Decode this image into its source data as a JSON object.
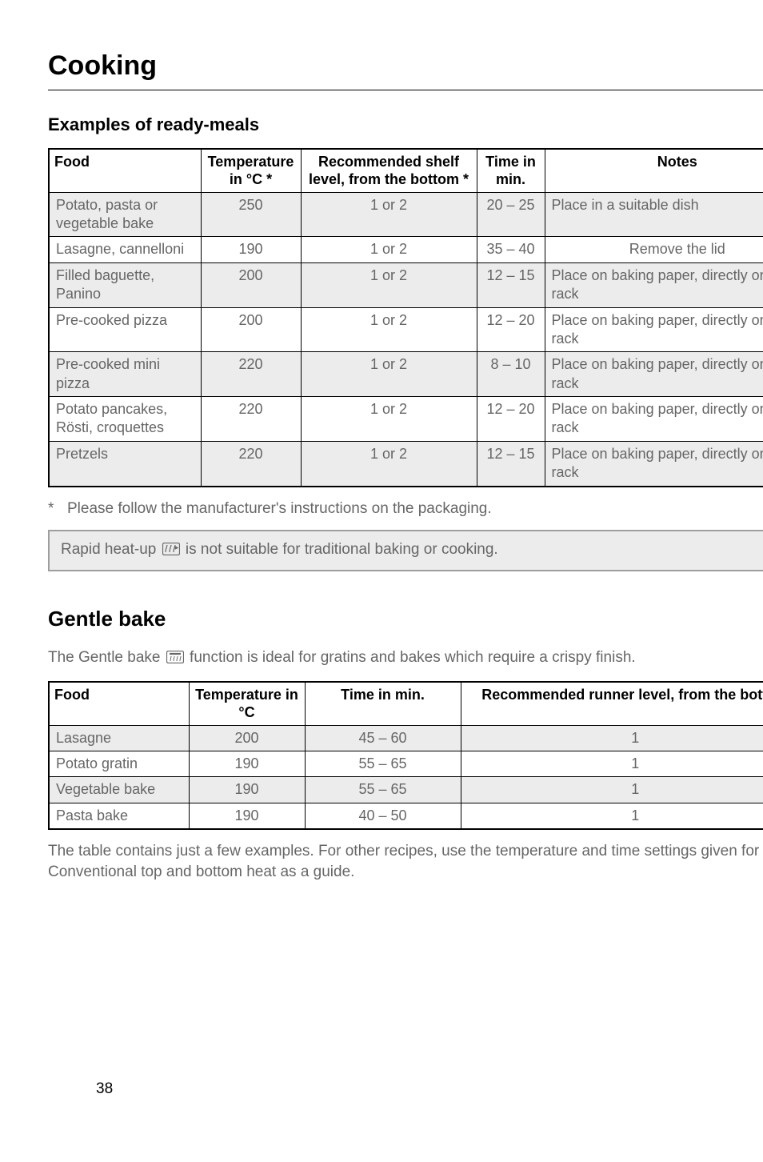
{
  "page_title": "Cooking",
  "page_number": "38",
  "section1": {
    "heading": "Examples of ready-meals",
    "columns": [
      "Food",
      "Temperature in °C *",
      "Recommended shelf level, from the bottom *",
      "Time in min.",
      "Notes"
    ],
    "rows": [
      {
        "food": "Potato, pasta or vegetable bake",
        "temp": "250",
        "shelf": "1 or 2",
        "time": "20 – 25",
        "notes": "Place in a suitable dish",
        "shade": true,
        "notes_align": "left"
      },
      {
        "food": "Lasagne, cannelloni",
        "temp": "190",
        "shelf": "1 or 2",
        "time": "35 – 40",
        "notes": "Remove the lid",
        "shade": false,
        "notes_align": "center"
      },
      {
        "food": "Filled baguette, Panino",
        "temp": "200",
        "shelf": "1 or 2",
        "time": "12 – 15",
        "notes": "Place on baking paper, directly on the rack",
        "shade": true,
        "notes_align": "left"
      },
      {
        "food": "Pre-cooked pizza",
        "temp": "200",
        "shelf": "1 or 2",
        "time": "12 – 20",
        "notes": "Place on baking paper, directly on the rack",
        "shade": false,
        "notes_align": "left"
      },
      {
        "food": "Pre-cooked mini pizza",
        "temp": "220",
        "shelf": "1 or 2",
        "time": "8 – 10",
        "notes": "Place on baking paper, directly on the rack",
        "shade": true,
        "notes_align": "left"
      },
      {
        "food": "Potato pancakes, Rösti, croquettes",
        "temp": "220",
        "shelf": "1 or 2",
        "time": "12 – 20",
        "notes": "Place on baking paper, directly on the rack",
        "shade": false,
        "notes_align": "left"
      },
      {
        "food": "Pretzels",
        "temp": "220",
        "shelf": "1 or 2",
        "time": "12 – 15",
        "notes": "Place on baking paper, directly on the rack",
        "shade": true,
        "notes_align": "left"
      }
    ],
    "footnote": "Please follow the manufacturer's instructions on the packaging.",
    "info_pre": "Rapid heat-up ",
    "info_post": " is not suitable for traditional baking or cooking."
  },
  "section2": {
    "heading": "Gentle bake",
    "intro_pre": "The Gentle bake ",
    "intro_post": " function is ideal for gratins and bakes which require a crispy finish.",
    "columns": [
      "Food",
      "Temperature in °C",
      "Time in min.",
      "Recommended runner level, from the bottom"
    ],
    "rows": [
      {
        "food": "Lasagne",
        "temp": "200",
        "time": "45 – 60",
        "level": "1",
        "shade": true
      },
      {
        "food": "Potato gratin",
        "temp": "190",
        "time": "55 – 65",
        "level": "1",
        "shade": false
      },
      {
        "food": "Vegetable bake",
        "temp": "190",
        "time": "55 – 65",
        "level": "1",
        "shade": true
      },
      {
        "food": "Pasta bake",
        "temp": "190",
        "time": "40 – 50",
        "level": "1",
        "shade": false
      }
    ],
    "outro": "The table contains just a few examples. For other recipes, use the temperature and time settings given for Conventional top and bottom heat as a guide."
  },
  "colors": {
    "text_body": "#666666",
    "text_heading": "#000000",
    "shade_bg": "#ececec",
    "border": "#000000",
    "info_border": "#9e9e9e"
  },
  "fonts": {
    "family": "Helvetica, Arial, sans-serif",
    "title_size_pt": 26,
    "subheading_size_pt": 17,
    "section_heading_pt": 20,
    "body_pt": 14,
    "table_pt": 13.5
  }
}
